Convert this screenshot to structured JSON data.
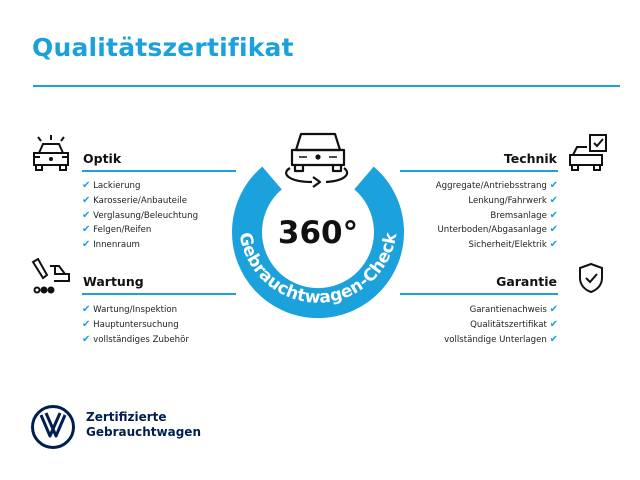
{
  "title": "Qualitätszertifikat",
  "center": {
    "big": "360°",
    "arc_text": "Gebrauchtwagen-Check"
  },
  "sections": {
    "optik": {
      "heading": "Optik",
      "icon": "car-lights-icon",
      "items": [
        "Lackierung",
        "Karosserie/Anbauteile",
        "Verglasung/Beleuchtung",
        "Felgen/Reifen",
        "Innenraum"
      ]
    },
    "wartung": {
      "heading": "Wartung",
      "icon": "service-car-icon",
      "items": [
        "Wartung/Inspektion",
        "Hauptuntersuchung",
        "vollständiges Zubehör"
      ]
    },
    "technik": {
      "heading": "Technik",
      "icon": "car-checklist-icon",
      "items": [
        "Aggregate/Antriebsstrang",
        "Lenkung/Fahrwerk",
        "Bremsanlage",
        "Unterboden/Abgasanlage",
        "Sicherheit/Elektrik"
      ]
    },
    "garantie": {
      "heading": "Garantie",
      "icon": "shield-check-icon",
      "items": [
        "Garantienachweis",
        "Qualitätszertifikat",
        "vollständige Unterlagen"
      ]
    }
  },
  "check_mark": "✔",
  "brand": {
    "line1": "Zertifizierte",
    "line2": "Gebrauchtwagen",
    "logo": "VW"
  },
  "colors": {
    "accent": "#1ba1dc",
    "brand": "#001e50"
  }
}
